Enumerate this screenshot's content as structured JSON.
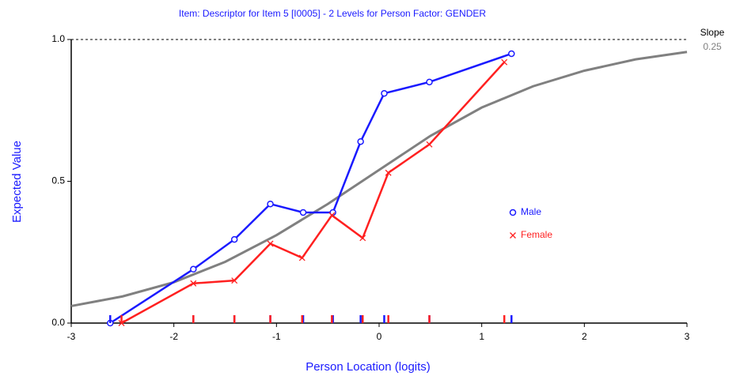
{
  "chart_data": {
    "type": "line",
    "title": "Item: Descriptor for Item 5 [I0005] - 2 Levels for Person Factor: GENDER",
    "xlabel": "Person Location (logits)",
    "ylabel": "Expected Value",
    "annotation": "Slope",
    "slope": {
      "value": 0.25,
      "label": "0.25"
    },
    "xlim": [
      -3,
      3
    ],
    "ylim": [
      0,
      1
    ],
    "xticks": [
      -3,
      -2,
      -1,
      0,
      1,
      2,
      3
    ],
    "yticks": [
      {
        "value": 0,
        "label": "0.0"
      },
      {
        "value": 0.5,
        "label": "0.5"
      },
      {
        "value": 1,
        "label": "1.0"
      }
    ],
    "legend": "right",
    "series": [
      {
        "name": "Male",
        "color": "#1a1aff",
        "marker": "circle",
        "x": [
          -2.62,
          -1.81,
          -1.41,
          -1.06,
          -0.74,
          -0.45,
          -0.18,
          0.05,
          0.49,
          1.29
        ],
        "values": [
          0.0,
          0.19,
          0.295,
          0.42,
          0.39,
          0.39,
          0.64,
          0.81,
          0.85,
          0.95
        ]
      },
      {
        "name": "Female",
        "color": "#ff2020",
        "marker": "cross",
        "x": [
          -2.51,
          -1.81,
          -1.41,
          -1.06,
          -0.75,
          -0.46,
          -0.16,
          0.09,
          0.49,
          1.22
        ],
        "values": [
          0.0,
          0.14,
          0.15,
          0.28,
          0.23,
          0.38,
          0.3,
          0.53,
          0.63,
          0.92
        ]
      }
    ],
    "curve": {
      "color": "#808080",
      "x": [
        -3,
        -2.5,
        -2,
        -1.5,
        -1,
        -0.5,
        0,
        0.5,
        1,
        1.5,
        2,
        2.5,
        3
      ],
      "values": [
        0.06,
        0.094,
        0.144,
        0.216,
        0.31,
        0.42,
        0.54,
        0.66,
        0.76,
        0.835,
        0.89,
        0.93,
        0.956
      ]
    }
  }
}
